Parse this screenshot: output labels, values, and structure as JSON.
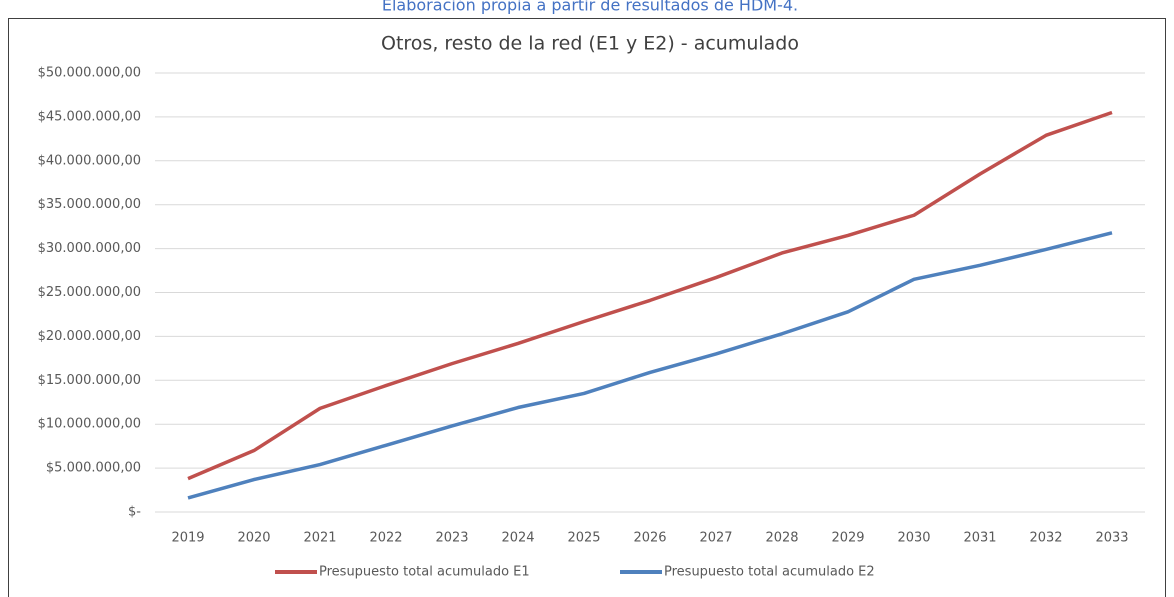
{
  "caption": "Elaboración propia a partir de resultados de HDM-4.",
  "chart_data": {
    "type": "line",
    "title": "Otros, resto de la red (E1 y E2) - acumulado",
    "categories": [
      "2019",
      "2020",
      "2021",
      "2022",
      "2023",
      "2024",
      "2025",
      "2026",
      "2027",
      "2028",
      "2029",
      "2030",
      "2031",
      "2032",
      "2033"
    ],
    "series": [
      {
        "name": "Presupuesto total acumulado E1",
        "color": "#c0504d",
        "values": [
          3800000,
          7000000,
          11800000,
          14400000,
          16900000,
          19200000,
          21700000,
          24100000,
          26700000,
          29500000,
          31500000,
          33800000,
          38500000,
          42900000,
          45500000
        ]
      },
      {
        "name": "Presupuesto total acumulado E2",
        "color": "#4f81bd",
        "values": [
          1600000,
          3700000,
          5400000,
          7600000,
          9800000,
          11900000,
          13500000,
          15900000,
          18000000,
          20300000,
          22800000,
          26500000,
          28100000,
          29900000,
          31800000
        ]
      }
    ],
    "ylim": [
      0,
      50000000
    ],
    "yticks": [
      {
        "value": 0,
        "label": "$-"
      },
      {
        "value": 5000000,
        "label": "$5.000.000,00"
      },
      {
        "value": 10000000,
        "label": "$10.000.000,00"
      },
      {
        "value": 15000000,
        "label": "$15.000.000,00"
      },
      {
        "value": 20000000,
        "label": "$20.000.000,00"
      },
      {
        "value": 25000000,
        "label": "$25.000.000,00"
      },
      {
        "value": 30000000,
        "label": "$30.000.000,00"
      },
      {
        "value": 35000000,
        "label": "$35.000.000,00"
      },
      {
        "value": 40000000,
        "label": "$40.000.000,00"
      },
      {
        "value": 45000000,
        "label": "$45.000.000,00"
      },
      {
        "value": 50000000,
        "label": "$50.000.000,00"
      }
    ],
    "grid": true,
    "legend": "bottom"
  }
}
